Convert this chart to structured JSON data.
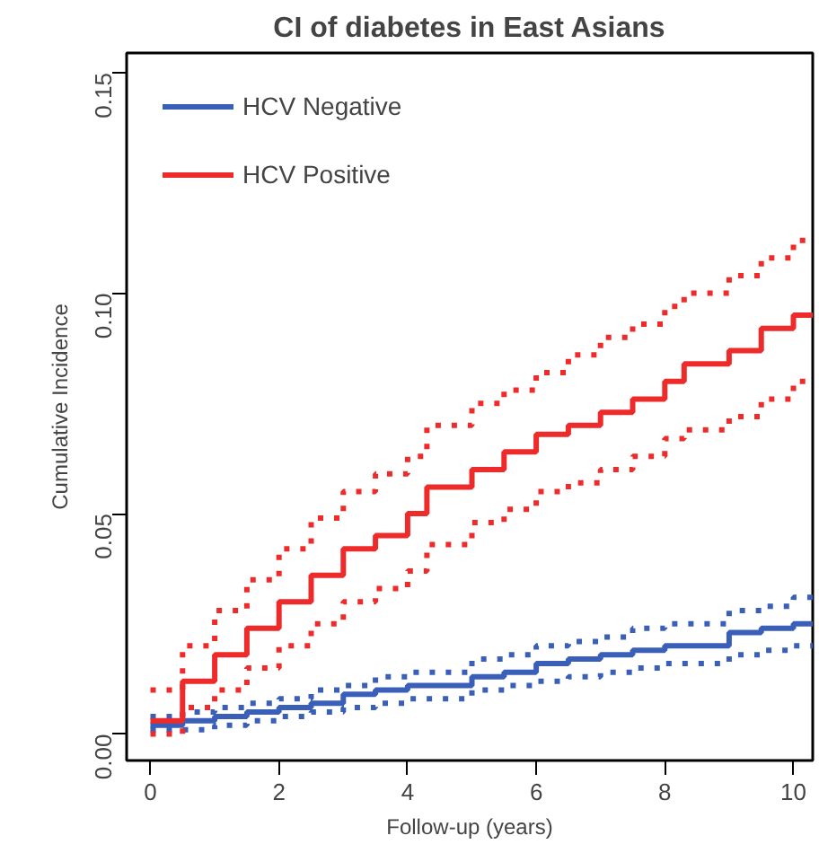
{
  "chart_data": {
    "type": "step",
    "title": "CI of diabetes in East Asians",
    "xlabel": "Follow-up (years)",
    "ylabel": "Cumulative Incidence",
    "x": [
      0,
      0.5,
      1,
      1.5,
      2,
      2.5,
      3,
      3.5,
      4,
      4.3,
      5,
      5.5,
      6,
      6.5,
      7,
      7.5,
      8,
      8.3,
      9,
      9.5,
      10,
      10.3
    ],
    "series": [
      {
        "name": "HCV Negative",
        "color": "#3a5fb8",
        "values": [
          0.002,
          0.003,
          0.004,
          0.005,
          0.006,
          0.007,
          0.009,
          0.01,
          0.011,
          0.011,
          0.013,
          0.014,
          0.016,
          0.017,
          0.018,
          0.019,
          0.02,
          0.02,
          0.023,
          0.024,
          0.025,
          0.025
        ]
      },
      {
        "color": "#3a5fb8",
        "line_style": "dotted",
        "values": [
          0.001,
          0.001,
          0.002,
          0.003,
          0.004,
          0.005,
          0.006,
          0.007,
          0.008,
          0.008,
          0.01,
          0.011,
          0.012,
          0.013,
          0.014,
          0.015,
          0.016,
          0.016,
          0.018,
          0.019,
          0.02,
          0.02
        ]
      },
      {
        "color": "#3a5fb8",
        "line_style": "dotted",
        "values": [
          0.004,
          0.005,
          0.006,
          0.007,
          0.008,
          0.01,
          0.011,
          0.013,
          0.014,
          0.014,
          0.017,
          0.018,
          0.02,
          0.021,
          0.022,
          0.024,
          0.025,
          0.025,
          0.028,
          0.029,
          0.031,
          0.031
        ]
      },
      {
        "name": "HCV Positive",
        "color": "#ee2b2b",
        "values": [
          0.003,
          0.012,
          0.018,
          0.024,
          0.03,
          0.036,
          0.042,
          0.045,
          0.05,
          0.056,
          0.06,
          0.064,
          0.068,
          0.07,
          0.073,
          0.076,
          0.08,
          0.084,
          0.087,
          0.092,
          0.095,
          0.095
        ]
      },
      {
        "color": "#ee2b2b",
        "line_style": "dotted",
        "values": [
          0.0,
          0.006,
          0.01,
          0.015,
          0.02,
          0.025,
          0.03,
          0.033,
          0.037,
          0.043,
          0.048,
          0.051,
          0.055,
          0.057,
          0.06,
          0.063,
          0.067,
          0.069,
          0.072,
          0.076,
          0.08,
          0.08
        ]
      },
      {
        "color": "#ee2b2b",
        "line_style": "dotted",
        "values": [
          0.01,
          0.02,
          0.028,
          0.035,
          0.042,
          0.049,
          0.055,
          0.059,
          0.063,
          0.07,
          0.075,
          0.078,
          0.082,
          0.086,
          0.09,
          0.093,
          0.097,
          0.1,
          0.104,
          0.108,
          0.112,
          0.112
        ]
      }
    ],
    "xlim": [
      -0.37,
      10.3
    ],
    "ylim": [
      -0.006,
      0.1545
    ],
    "xticks": [
      0,
      2,
      4,
      6,
      8,
      10
    ],
    "yticks": [
      {
        "value": 0,
        "label": "0.00"
      },
      {
        "value": 0.05,
        "label": "0.05"
      },
      {
        "value": 0.1,
        "label": "0.10"
      },
      {
        "value": 0.15,
        "label": "0.15"
      }
    ],
    "grid": false,
    "legend": "top left",
    "marker": "none",
    "line_style": "solid"
  }
}
